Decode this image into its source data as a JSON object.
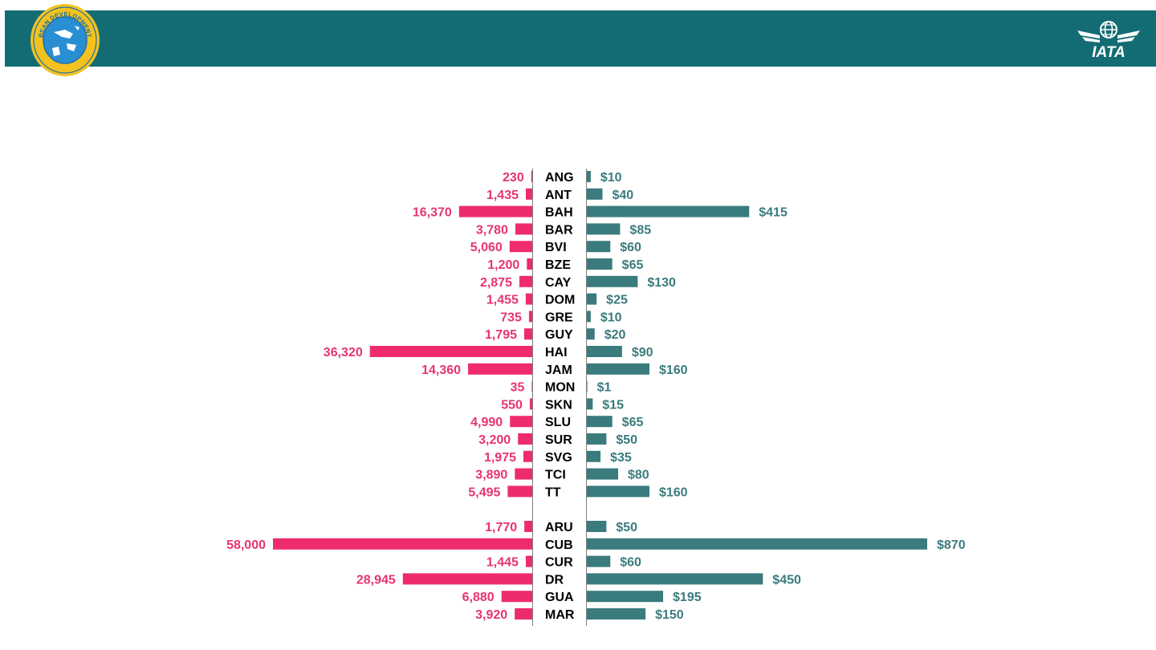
{
  "header": {
    "background_color": "#136c74",
    "left_logo": {
      "icon": "caribbean-development-bank-logo",
      "text": "CARIBBEAN DEVELOPMENT BANK"
    },
    "right_logo": {
      "icon": "iata-logo",
      "text": "IATA"
    }
  },
  "colors": {
    "left_bars": "#ee2c6c",
    "right_bars": "#3a7b7d",
    "axis": "#7f7f7f"
  },
  "chart_data": {
    "type": "bar",
    "orientation": "horizontal-butterfly",
    "categories": [
      "ANG",
      "ANT",
      "BAH",
      "BAR",
      "BVI",
      "BZE",
      "CAY",
      "DOM",
      "GRE",
      "GUY",
      "HAI",
      "JAM",
      "MON",
      "SKN",
      "SLU",
      "SUR",
      "SVG",
      "TCI",
      "TT",
      "ARU",
      "CUB",
      "CUR",
      "DR",
      "GUA",
      "MAR"
    ],
    "groups": [
      [
        "ANG",
        "ANT",
        "BAH",
        "BAR",
        "BVI",
        "BZE",
        "CAY",
        "DOM",
        "GRE",
        "GUY",
        "HAI",
        "JAM",
        "MON",
        "SKN",
        "SLU",
        "SUR",
        "SVG",
        "TCI",
        "TT"
      ],
      [
        "ARU",
        "CUB",
        "CUR",
        "DR",
        "GUA",
        "MAR"
      ]
    ],
    "series": [
      {
        "side": "left",
        "values": [
          230,
          1435,
          16370,
          3780,
          5060,
          1200,
          2875,
          1455,
          735,
          1795,
          36320,
          14360,
          35,
          550,
          4990,
          3200,
          1975,
          3890,
          5495,
          1770,
          58000,
          1445,
          28945,
          6880,
          3920
        ],
        "labels": [
          "230",
          "1,435",
          "16,370",
          "3,780",
          "5,060",
          "1,200",
          "2,875",
          "1,455",
          "735",
          "1,795",
          "36,320",
          "14,360",
          "35",
          "550",
          "4,990",
          "3,200",
          "1,975",
          "3,890",
          "5,495",
          "1,770",
          "58,000",
          "1,445",
          "28,945",
          "6,880",
          "3,920"
        ]
      },
      {
        "side": "right",
        "values": [
          10,
          40,
          415,
          85,
          60,
          65,
          130,
          25,
          10,
          20,
          90,
          160,
          1,
          15,
          65,
          50,
          35,
          80,
          160,
          50,
          870,
          60,
          450,
          195,
          150
        ],
        "labels": [
          "$10",
          "$40",
          "$415",
          "$85",
          "$60",
          "$65",
          "$130",
          "$25",
          "$10",
          "$20",
          "$90",
          "$160",
          "$1",
          "$15",
          "$65",
          "$50",
          "$35",
          "$80",
          "$160",
          "$50",
          "$870",
          "$60",
          "$450",
          "$195",
          "$150"
        ]
      }
    ],
    "grid": false,
    "legend": "none"
  }
}
